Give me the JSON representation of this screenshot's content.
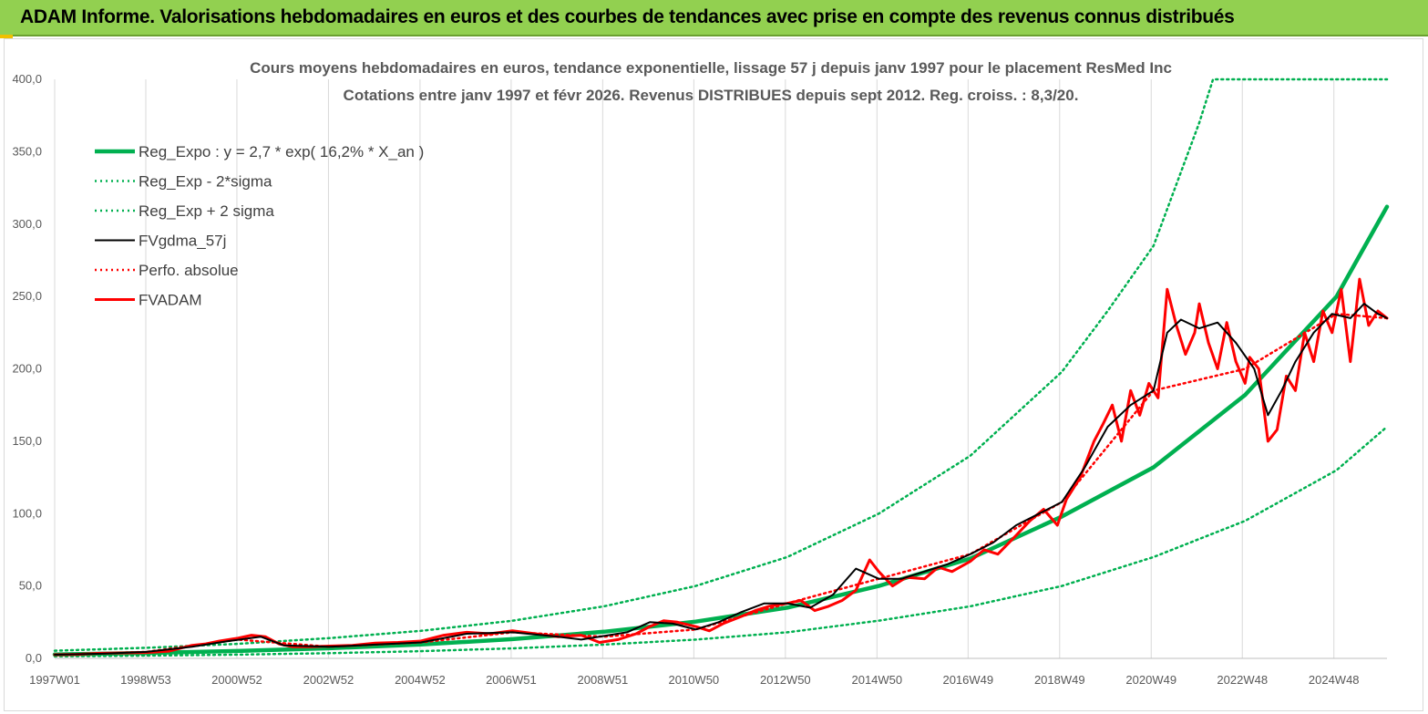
{
  "banner": {
    "title": "ADAM Informe. Valorisations hebdomadaires en euros et des courbes de tendances avec prise en compte des revenus connus distribués",
    "background": "#92d050"
  },
  "chart_data": {
    "type": "line",
    "title": "Cours moyens hebdomadaires en euros, tendance exponentielle, lissage 57 j depuis janv 1997 pour le placement ResMed Inc",
    "subtitle": "Cotations entre janv 1997 et févr 2026. Revenus DISTRIBUES depuis sept 2012. Reg. croiss. : 8,3/20.",
    "xlabel": "",
    "ylabel": "",
    "ylim": [
      0,
      400
    ],
    "xlim": [
      1997.0,
      2026.1
    ],
    "grid": {
      "vertical": true,
      "horizontal": false
    },
    "legend_position": "top-left",
    "x_ticks": [
      {
        "label": "1997W01",
        "year": 1997.0
      },
      {
        "label": "1998W53",
        "year": 1998.99
      },
      {
        "label": "2000W52",
        "year": 2000.98
      },
      {
        "label": "2002W52",
        "year": 2002.98
      },
      {
        "label": "2004W52",
        "year": 2004.98
      },
      {
        "label": "2006W51",
        "year": 2006.97
      },
      {
        "label": "2008W51",
        "year": 2008.97
      },
      {
        "label": "2010W50",
        "year": 2010.96
      },
      {
        "label": "2012W50",
        "year": 2012.96
      },
      {
        "label": "2014W50",
        "year": 2014.96
      },
      {
        "label": "2016W49",
        "year": 2016.95
      },
      {
        "label": "2018W49",
        "year": 2018.95
      },
      {
        "label": "2020W49",
        "year": 2020.95
      },
      {
        "label": "2022W48",
        "year": 2022.94
      },
      {
        "label": "2024W48",
        "year": 2024.94
      }
    ],
    "y_ticks": [
      {
        "label": "0,0",
        "value": 0
      },
      {
        "label": "50,0",
        "value": 50
      },
      {
        "label": "100,0",
        "value": 100
      },
      {
        "label": "150,0",
        "value": 150
      },
      {
        "label": "200,0",
        "value": 200
      },
      {
        "label": "250,0",
        "value": 250
      },
      {
        "label": "300,0",
        "value": 300
      },
      {
        "label": "350,0",
        "value": 350
      },
      {
        "label": "400,0",
        "value": 400
      }
    ],
    "series": [
      {
        "name": "Reg_Expo : y = 2,7 * exp( 16,2% *  X_an )",
        "color": "#00b050",
        "style": "solid-thick",
        "x": [
          1997.0,
          1999.0,
          2001.0,
          2003.0,
          2005.0,
          2007.0,
          2009.0,
          2011.0,
          2013.0,
          2015.0,
          2017.0,
          2019.0,
          2021.0,
          2023.0,
          2025.0,
          2026.1
        ],
        "y": [
          2.7,
          3.7,
          5.1,
          7.0,
          9.6,
          13.3,
          18.4,
          25.4,
          35.0,
          50.0,
          69.0,
          98.0,
          132.0,
          182.0,
          250.0,
          312.0
        ]
      },
      {
        "name": "Reg_Exp - 2*sigma",
        "color": "#00b050",
        "style": "dotted",
        "x": [
          1997.0,
          1999.0,
          2001.0,
          2003.0,
          2005.0,
          2007.0,
          2009.0,
          2011.0,
          2013.0,
          2015.0,
          2017.0,
          2019.0,
          2021.0,
          2023.0,
          2025.0,
          2026.1
        ],
        "y": [
          1.4,
          1.9,
          2.6,
          3.6,
          5.0,
          6.9,
          9.5,
          13.0,
          18.0,
          26.0,
          36.0,
          50.0,
          70.0,
          95.0,
          130.0,
          160.0
        ]
      },
      {
        "name": "Reg_Exp + 2 sigma",
        "color": "#00b050",
        "style": "dotted",
        "x": [
          1997.0,
          1999.0,
          2001.0,
          2003.0,
          2005.0,
          2007.0,
          2009.0,
          2011.0,
          2013.0,
          2015.0,
          2017.0,
          2019.0,
          2020.0,
          2021.0,
          2022.0,
          2022.3,
          2026.1
        ],
        "y": [
          5.3,
          7.3,
          10.0,
          14.0,
          19.0,
          26.0,
          36.0,
          50.0,
          70.0,
          100.0,
          140.0,
          198.0,
          240.0,
          285.0,
          370.0,
          400.0,
          400.0
        ]
      },
      {
        "name": "FVgdma_57j",
        "color": "#000000",
        "style": "solid",
        "x": [
          1997.0,
          1998.0,
          1999.0,
          2000.0,
          2000.8,
          2001.5,
          2002.0,
          2003.0,
          2004.0,
          2005.0,
          2006.0,
          2007.0,
          2008.0,
          2008.5,
          2009.5,
          2010.0,
          2010.5,
          2011.0,
          2011.5,
          2012.0,
          2012.5,
          2013.0,
          2013.5,
          2014.0,
          2014.5,
          2015.0,
          2015.5,
          2016.0,
          2016.5,
          2017.0,
          2017.5,
          2018.0,
          2018.5,
          2019.0,
          2019.5,
          2020.0,
          2020.5,
          2021.0,
          2021.3,
          2021.6,
          2022.0,
          2022.4,
          2022.8,
          2023.2,
          2023.5,
          2023.8,
          2024.1,
          2024.5,
          2024.9,
          2025.3,
          2025.6,
          2025.9,
          2026.1
        ],
        "y": [
          2.5,
          3.2,
          4.5,
          8.0,
          12.0,
          15.0,
          9.0,
          8.0,
          9.5,
          11.0,
          17.0,
          18.0,
          15.0,
          13.0,
          18.0,
          25.0,
          24.0,
          20.0,
          25.0,
          32.0,
          38.0,
          38.0,
          35.0,
          44.0,
          62.0,
          55.0,
          55.0,
          60.0,
          65.0,
          72.0,
          80.0,
          92.0,
          100.0,
          108.0,
          132.0,
          160.0,
          175.0,
          185.0,
          225.0,
          234.0,
          228.0,
          232.0,
          218.0,
          200.0,
          168.0,
          185.0,
          205.0,
          225.0,
          238.0,
          235.0,
          245.0,
          238.0,
          235.0
        ]
      },
      {
        "name": "Perfo. absolue",
        "color": "#ff0000",
        "style": "dotted",
        "x": [
          1997.0,
          1999.0,
          2001.0,
          2003.0,
          2005.0,
          2007.0,
          2009.0,
          2011.0,
          2013.0,
          2015.0,
          2017.0,
          2019.0,
          2021.0,
          2023.0,
          2025.0,
          2026.1
        ],
        "y": [
          2.5,
          4.5,
          13.0,
          8.0,
          11.0,
          18.0,
          15.0,
          20.0,
          38.0,
          55.0,
          72.0,
          108.0,
          185.0,
          200.0,
          238.0,
          235.0
        ]
      },
      {
        "name": "FVADAM",
        "color": "#ff0000",
        "style": "solid-thick",
        "x": [
          1997.0,
          1997.5,
          1998.0,
          1998.5,
          1999.0,
          1999.5,
          2000.0,
          2000.3,
          2000.6,
          2001.0,
          2001.3,
          2001.6,
          2001.9,
          2002.2,
          2002.6,
          2003.0,
          2003.5,
          2004.0,
          2004.5,
          2005.0,
          2005.5,
          2006.0,
          2006.5,
          2007.0,
          2007.5,
          2008.0,
          2008.5,
          2008.9,
          2009.3,
          2009.7,
          2010.0,
          2010.3,
          2010.6,
          2011.0,
          2011.3,
          2011.6,
          2012.0,
          2012.3,
          2012.6,
          2013.0,
          2013.3,
          2013.6,
          2013.9,
          2014.2,
          2014.5,
          2014.8,
          2015.0,
          2015.3,
          2015.6,
          2016.0,
          2016.3,
          2016.6,
          2017.0,
          2017.3,
          2017.6,
          2018.0,
          2018.3,
          2018.6,
          2018.9,
          2019.1,
          2019.4,
          2019.7,
          2019.9,
          2020.1,
          2020.3,
          2020.5,
          2020.7,
          2020.9,
          2021.1,
          2021.3,
          2021.5,
          2021.7,
          2021.9,
          2022.0,
          2022.2,
          2022.4,
          2022.6,
          2022.8,
          2023.0,
          2023.1,
          2023.3,
          2023.5,
          2023.7,
          2023.9,
          2024.1,
          2024.3,
          2024.5,
          2024.7,
          2024.9,
          2025.1,
          2025.3,
          2025.5,
          2025.7,
          2025.9,
          2026.1
        ],
        "y": [
          2.5,
          2.8,
          3.5,
          3.8,
          4.0,
          5.0,
          9.0,
          10.0,
          12.0,
          14.0,
          16.0,
          15.0,
          10.0,
          8.0,
          8.0,
          8.5,
          9.0,
          10.5,
          11.0,
          12.0,
          16.0,
          18.0,
          17.0,
          19.0,
          17.0,
          15.0,
          16.0,
          11.0,
          13.0,
          17.0,
          22.0,
          26.0,
          25.0,
          22.0,
          19.0,
          24.0,
          29.0,
          33.0,
          36.0,
          38.0,
          40.0,
          33.0,
          36.0,
          40.0,
          47.0,
          68.0,
          60.0,
          50.0,
          56.0,
          55.0,
          63.0,
          60.0,
          67.0,
          75.0,
          72.0,
          85.0,
          95.0,
          103.0,
          92.0,
          110.0,
          125.0,
          150.0,
          162.0,
          175.0,
          150.0,
          185.0,
          168.0,
          190.0,
          180.0,
          255.0,
          230.0,
          210.0,
          225.0,
          245.0,
          218.0,
          200.0,
          232.0,
          205.0,
          190.0,
          208.0,
          200.0,
          150.0,
          158.0,
          195.0,
          185.0,
          225.0,
          205.0,
          240.0,
          225.0,
          255.0,
          205.0,
          262.0,
          230.0,
          240.0,
          235.0
        ]
      }
    ]
  }
}
